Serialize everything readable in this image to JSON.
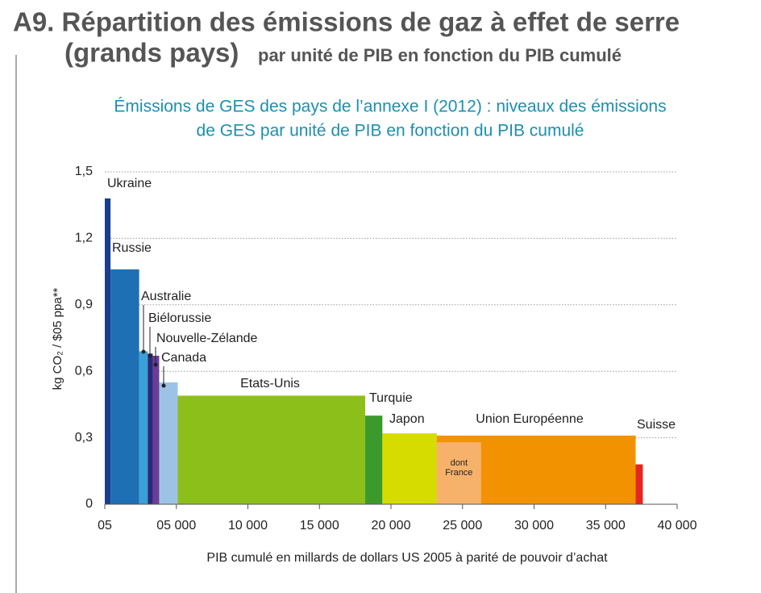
{
  "chart_data": {
    "type": "variable-width-bar",
    "title": "A9. Répartition des émissions de gaz à effet de serre",
    "title_line2": "(grands pays)",
    "title_line2_rest": "par unité de PIB en fonction du PIB cumulé",
    "subtitle": [
      "Émissions de GES des pays de l’annexe I (2012) : niveaux des émissions",
      "de GES par unité de PIB en fonction du PIB cumulé"
    ],
    "y_label": "kg CO₂ / $05 ppa**",
    "x_label": "PIB cumulé en millards de dollars US 2005 à parité de pouvoir d’achat",
    "categories": [
      "Ukraine",
      "Russie",
      "Australie",
      "Biélorussie",
      "Nouvelle-Zélande",
      "Canada",
      "Etats-Unis",
      "Turquie",
      "Japon",
      "Union Européenne",
      "Suisse"
    ],
    "bins": [
      0,
      400,
      2400,
      3000,
      3350,
      3800,
      5100,
      18200,
      19400,
      23200,
      37100,
      37600
    ],
    "values": [
      1.38,
      1.06,
      0.69,
      0.68,
      0.67,
      0.55,
      0.49,
      0.4,
      0.32,
      0.31,
      0.18
    ],
    "colors": [
      "#1b3d8f",
      "#1f6fb5",
      "#3aa0d8",
      "#2b2a78",
      "#6a3d9a",
      "#9cc3e6",
      "#8dbf1a",
      "#3c9a2c",
      "#d7dc00",
      "#f39200",
      "#e52521"
    ],
    "inset": {
      "label": [
        "dont",
        "France"
      ],
      "bins": [
        23200,
        26300
      ],
      "value": 0.28,
      "color": "#f6b26b"
    },
    "xlim": [
      0,
      40000
    ],
    "xticks": [
      {
        "value": 0,
        "label": "05"
      },
      {
        "value": 5000,
        "label": "05 000"
      },
      {
        "value": 10000,
        "label": "10 000"
      },
      {
        "value": 15000,
        "label": "15 000"
      },
      {
        "value": 20000,
        "label": "20 000"
      },
      {
        "value": 25000,
        "label": "25 000"
      },
      {
        "value": 30000,
        "label": "30 000"
      },
      {
        "value": 35000,
        "label": "35 000"
      },
      {
        "value": 40000,
        "label": "40 000"
      }
    ],
    "ylim": [
      0,
      1.5
    ],
    "yticks": [
      0,
      {
        "value": 0.3,
        "label": "0,3"
      },
      {
        "value": 0.6,
        "label": "0,6"
      },
      {
        "value": 0.9,
        "label": "0,9"
      },
      {
        "value": 1.2,
        "label": "1,2"
      },
      {
        "value": 1.5,
        "label": "1,5"
      }
    ],
    "grid": true
  }
}
